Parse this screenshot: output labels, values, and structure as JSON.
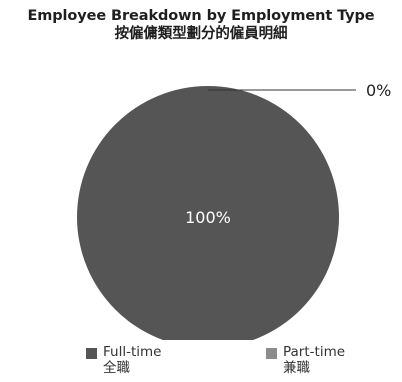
{
  "chart_data": {
    "type": "pie",
    "title": "Employee Breakdown by Employment Type",
    "subtitle": "按僱傭類型劃分的僱員明細",
    "slices": [
      {
        "label": "Full-time",
        "label_zh": "全職",
        "value": 100,
        "value_label": "100%",
        "color": "#555555"
      },
      {
        "label": "Part-time",
        "label_zh": "兼職",
        "value": 0,
        "value_label": "0%",
        "color": "#8c8c8c"
      }
    ],
    "legend_position": "bottom",
    "leader_line_color": "#333333"
  }
}
